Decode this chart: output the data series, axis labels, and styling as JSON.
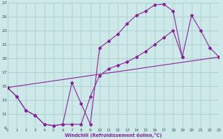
{
  "xlabel": "Windchill (Refroidissement éolien,°C)",
  "bg_color": "#cce8e8",
  "grid_color": "#aacccc",
  "line_color": "#882299",
  "xlim": [
    0,
    23
  ],
  "ylim": [
    9,
    27
  ],
  "xtick_vals": [
    0,
    1,
    2,
    3,
    4,
    5,
    6,
    7,
    8,
    9,
    10,
    11,
    12,
    13,
    14,
    15,
    16,
    17,
    18,
    19,
    20,
    21,
    22,
    23
  ],
  "ytick_vals": [
    9,
    11,
    13,
    15,
    17,
    19,
    21,
    23,
    25,
    27
  ],
  "curve1_x": [
    0,
    1,
    2,
    3,
    4,
    5,
    6,
    7,
    8,
    9,
    10,
    11,
    12,
    13,
    14,
    15,
    16,
    17,
    18,
    19
  ],
  "curve1_y": [
    14.8,
    13.5,
    11.5,
    10.8,
    9.5,
    9.3,
    9.5,
    15.5,
    12.5,
    9.5,
    20.5,
    21.5,
    22.5,
    24.0,
    25.2,
    25.8,
    26.7,
    26.8,
    25.8,
    19.2
  ],
  "curve2_x": [
    0,
    1,
    2,
    3,
    4,
    5,
    6,
    7,
    8,
    9,
    10,
    11,
    12,
    13,
    14,
    15,
    16,
    17,
    18,
    19,
    20,
    21,
    22,
    23
  ],
  "curve2_y": [
    14.8,
    13.5,
    11.5,
    10.8,
    9.5,
    9.3,
    9.5,
    9.5,
    9.5,
    13.5,
    16.5,
    17.5,
    18.0,
    18.5,
    19.2,
    20.0,
    21.0,
    22.0,
    23.0,
    19.2,
    25.2,
    23.0,
    20.5,
    19.2
  ],
  "curve3_x": [
    0,
    23
  ],
  "curve3_y": [
    14.8,
    19.2
  ],
  "marker": "D",
  "markersize": 2.0,
  "linewidth": 0.8
}
